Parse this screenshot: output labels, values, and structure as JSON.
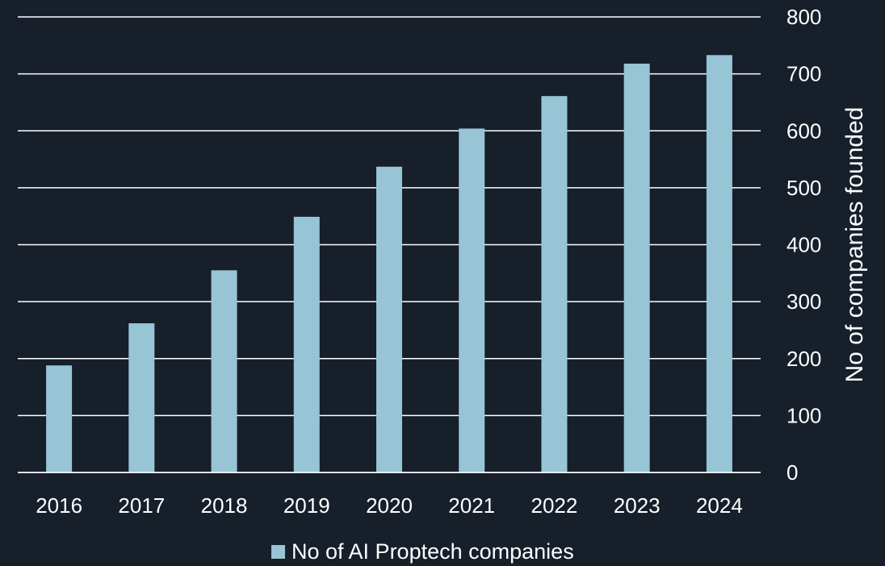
{
  "chart_data": {
    "type": "bar",
    "categories": [
      "2016",
      "2017",
      "2018",
      "2019",
      "2020",
      "2021",
      "2022",
      "2023",
      "2024"
    ],
    "series": [
      {
        "name": "No of AI Proptech companies",
        "values": [
          188,
          262,
          355,
          449,
          537,
          604,
          661,
          718,
          733
        ],
        "color": "#97c5d5"
      }
    ],
    "ylabel": "No of companies founded",
    "ylim": [
      0,
      800
    ],
    "yticks": [
      "0",
      "100",
      "200",
      "300",
      "400",
      "500",
      "600",
      "700",
      "800"
    ],
    "y_axis_side": "right",
    "grid": true,
    "legend_position": "bottom",
    "background": "#161f2a"
  }
}
